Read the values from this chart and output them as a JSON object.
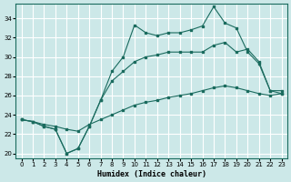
{
  "xlabel": "Humidex (Indice chaleur)",
  "background_color": "#cce8e8",
  "grid_color": "#ffffff",
  "line_color": "#1a6b5e",
  "xlim": [
    -0.5,
    23.5
  ],
  "ylim": [
    19.5,
    35.5
  ],
  "xticks": [
    0,
    1,
    2,
    3,
    4,
    5,
    6,
    7,
    8,
    9,
    10,
    11,
    12,
    13,
    14,
    15,
    16,
    17,
    18,
    19,
    20,
    21,
    22,
    23
  ],
  "yticks": [
    20,
    22,
    24,
    26,
    28,
    30,
    32,
    34
  ],
  "line1_x": [
    0,
    1,
    2,
    3,
    4,
    5,
    6,
    7,
    8,
    9,
    10,
    11,
    12,
    13,
    14,
    15,
    16,
    17,
    18,
    19,
    20,
    21,
    22,
    23
  ],
  "line1_y": [
    23.5,
    23.3,
    22.8,
    22.5,
    20.0,
    20.5,
    22.8,
    25.5,
    28.5,
    30.0,
    33.3,
    32.5,
    32.2,
    32.5,
    32.5,
    32.8,
    33.2,
    35.2,
    33.5,
    33.0,
    30.5,
    29.3,
    26.5,
    26.5
  ],
  "line2_x": [
    0,
    1,
    2,
    3,
    4,
    5,
    6,
    7,
    8,
    9,
    10,
    11,
    12,
    13,
    14,
    15,
    16,
    17,
    18,
    19,
    20,
    21,
    22,
    23
  ],
  "line2_y": [
    23.5,
    23.3,
    22.8,
    22.5,
    20.0,
    20.5,
    22.8,
    25.5,
    27.5,
    28.5,
    29.5,
    30.0,
    30.2,
    30.5,
    30.5,
    30.5,
    30.5,
    31.2,
    31.5,
    30.5,
    30.8,
    29.5,
    26.5,
    26.2
  ],
  "line3_x": [
    0,
    1,
    2,
    3,
    4,
    5,
    6,
    7,
    8,
    9,
    10,
    11,
    12,
    13,
    14,
    15,
    16,
    17,
    18,
    19,
    20,
    21,
    22,
    23
  ],
  "line3_y": [
    23.5,
    23.3,
    23.0,
    22.8,
    22.5,
    22.3,
    23.0,
    23.5,
    24.0,
    24.5,
    25.0,
    25.3,
    25.5,
    25.8,
    26.0,
    26.2,
    26.5,
    26.8,
    27.0,
    26.8,
    26.5,
    26.2,
    26.0,
    26.2
  ]
}
